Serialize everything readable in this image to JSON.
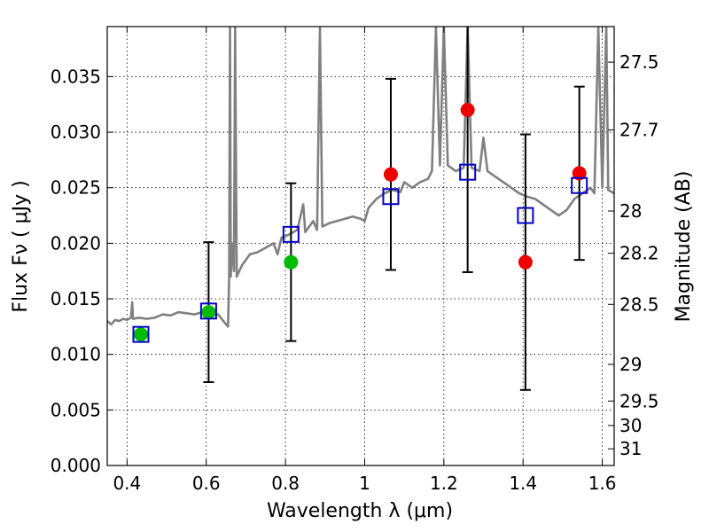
{
  "chart_data": {
    "type": "scatter",
    "title": "",
    "xlabel": "Wavelength  λ (μm)",
    "ylabel": "Flux  Fν  ( μJy )",
    "y2label": "Magnitude (AB)",
    "xlim": [
      0.35,
      1.63
    ],
    "ylim": [
      0.0,
      0.0395
    ],
    "grid": true,
    "x_ticks": [
      0.4,
      0.6,
      0.8,
      1.0,
      1.2,
      1.4,
      1.6
    ],
    "x_tick_labels": [
      "0.4",
      "0.6",
      "0.8",
      "1",
      "1.2",
      "1.4",
      "1.6"
    ],
    "y_ticks": [
      0.0,
      0.005,
      0.01,
      0.015,
      0.02,
      0.025,
      0.03,
      0.035
    ],
    "y_tick_labels": [
      "0.000",
      "0.005",
      "0.010",
      "0.015",
      "0.020",
      "0.025",
      "0.030",
      "0.035"
    ],
    "magnitude_ticks": [
      {
        "label": "27.5",
        "flux": 0.0363
      },
      {
        "label": "27.7",
        "flux": 0.0302
      },
      {
        "label": "28",
        "flux": 0.0229
      },
      {
        "label": "28.2",
        "flux": 0.0191
      },
      {
        "label": "28.5",
        "flux": 0.0145
      },
      {
        "label": "29",
        "flux": 0.0091
      },
      {
        "label": "29.5",
        "flux": 0.0058
      },
      {
        "label": "30",
        "flux": 0.0036
      },
      {
        "label": "31",
        "flux": 0.0015
      }
    ],
    "series": [
      {
        "kind": "line",
        "color": "#808080",
        "points": [
          [
            0.35,
            0.013
          ],
          [
            0.36,
            0.0127
          ],
          [
            0.37,
            0.0131
          ],
          [
            0.38,
            0.013
          ],
          [
            0.39,
            0.0132
          ],
          [
            0.4,
            0.0131
          ],
          [
            0.41,
            0.0133
          ],
          [
            0.413,
            0.0147
          ],
          [
            0.415,
            0.0132
          ],
          [
            0.43,
            0.0133
          ],
          [
            0.45,
            0.0132
          ],
          [
            0.47,
            0.0133
          ],
          [
            0.49,
            0.0136
          ],
          [
            0.51,
            0.0135
          ],
          [
            0.53,
            0.0138
          ],
          [
            0.55,
            0.0137
          ],
          [
            0.57,
            0.0136
          ],
          [
            0.59,
            0.0138
          ],
          [
            0.61,
            0.0136
          ],
          [
            0.63,
            0.0136
          ],
          [
            0.65,
            0.0127
          ],
          [
            0.655,
            0.0125
          ],
          [
            0.658,
            0.017
          ],
          [
            0.66,
            0.0395
          ],
          [
            0.662,
            0.017
          ],
          [
            0.665,
            0.02
          ],
          [
            0.67,
            0.0175
          ],
          [
            0.673,
            0.0395
          ],
          [
            0.677,
            0.017
          ],
          [
            0.69,
            0.018
          ],
          [
            0.71,
            0.019
          ],
          [
            0.73,
            0.0192
          ],
          [
            0.75,
            0.0196
          ],
          [
            0.77,
            0.02
          ],
          [
            0.78,
            0.019
          ],
          [
            0.79,
            0.0205
          ],
          [
            0.81,
            0.0208
          ],
          [
            0.83,
            0.0212
          ],
          [
            0.845,
            0.0235
          ],
          [
            0.85,
            0.021
          ],
          [
            0.87,
            0.022
          ],
          [
            0.88,
            0.0212
          ],
          [
            0.887,
            0.0395
          ],
          [
            0.893,
            0.0215
          ],
          [
            0.91,
            0.0218
          ],
          [
            0.93,
            0.022
          ],
          [
            0.95,
            0.0222
          ],
          [
            0.97,
            0.0224
          ],
          [
            0.99,
            0.0222
          ],
          [
            1.0,
            0.022
          ],
          [
            1.01,
            0.0232
          ],
          [
            1.03,
            0.024
          ],
          [
            1.05,
            0.0245
          ],
          [
            1.07,
            0.0248
          ],
          [
            1.09,
            0.0246
          ],
          [
            1.1,
            0.0255
          ],
          [
            1.12,
            0.025
          ],
          [
            1.14,
            0.0255
          ],
          [
            1.16,
            0.0258
          ],
          [
            1.17,
            0.0265
          ],
          [
            1.18,
            0.0395
          ],
          [
            1.19,
            0.027
          ],
          [
            1.2,
            0.0395
          ],
          [
            1.21,
            0.027
          ],
          [
            1.23,
            0.0265
          ],
          [
            1.25,
            0.0268
          ],
          [
            1.26,
            0.0395
          ],
          [
            1.27,
            0.0268
          ],
          [
            1.29,
            0.0265
          ],
          [
            1.3,
            0.0295
          ],
          [
            1.31,
            0.0265
          ],
          [
            1.33,
            0.026
          ],
          [
            1.35,
            0.0255
          ],
          [
            1.37,
            0.025
          ],
          [
            1.39,
            0.0245
          ],
          [
            1.41,
            0.0242
          ],
          [
            1.43,
            0.024
          ],
          [
            1.45,
            0.0235
          ],
          [
            1.47,
            0.023
          ],
          [
            1.49,
            0.0225
          ],
          [
            1.51,
            0.023
          ],
          [
            1.53,
            0.024
          ],
          [
            1.55,
            0.0245
          ],
          [
            1.57,
            0.025
          ],
          [
            1.58,
            0.0245
          ],
          [
            1.59,
            0.0395
          ],
          [
            1.6,
            0.025
          ],
          [
            1.61,
            0.0395
          ],
          [
            1.615,
            0.0248
          ],
          [
            1.63,
            0.0245
          ]
        ]
      },
      {
        "kind": "model-bandpass",
        "marker": "open-square",
        "color": "#0000cc",
        "points": [
          {
            "x": 0.435,
            "y": 0.0118
          },
          {
            "x": 0.606,
            "y": 0.0139
          },
          {
            "x": 0.814,
            "y": 0.0208
          },
          {
            "x": 1.066,
            "y": 0.0242
          },
          {
            "x": 1.26,
            "y": 0.0264
          },
          {
            "x": 1.406,
            "y": 0.0225
          },
          {
            "x": 1.542,
            "y": 0.0252
          }
        ]
      },
      {
        "kind": "observed",
        "marker": "filled-circle",
        "color": "#00bb00",
        "points": [
          {
            "x": 0.435,
            "y": 0.0118,
            "err": null
          },
          {
            "x": 0.606,
            "y": 0.0138,
            "err": 0.0063
          },
          {
            "x": 0.814,
            "y": 0.0183,
            "err": 0.0071
          }
        ]
      },
      {
        "kind": "observed",
        "marker": "filled-circle",
        "color": "#ee0000",
        "points": [
          {
            "x": 1.066,
            "y": 0.0262,
            "err": 0.0086
          },
          {
            "x": 1.26,
            "y": 0.032,
            "err": 0.0146
          },
          {
            "x": 1.406,
            "y": 0.0183,
            "err": 0.0115
          },
          {
            "x": 1.542,
            "y": 0.0263,
            "err": 0.0078
          }
        ]
      }
    ]
  }
}
